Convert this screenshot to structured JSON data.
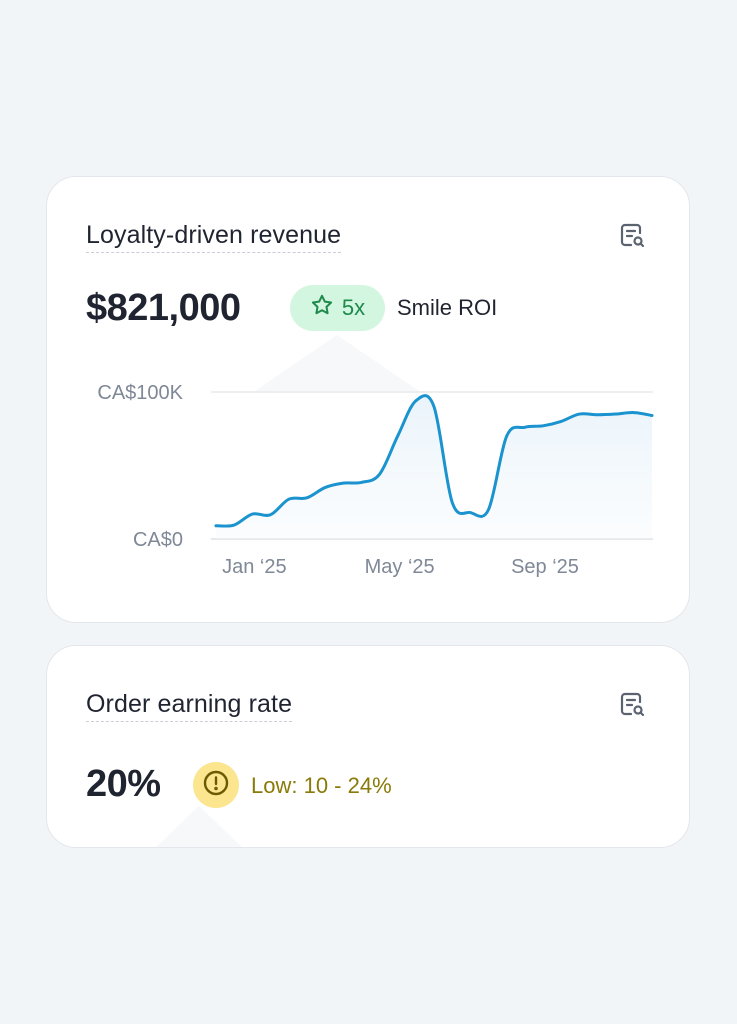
{
  "revenue_card": {
    "title": "Loyalty-driven revenue",
    "value": "$821,000",
    "roi_badge": "5x",
    "roi_label": "Smile ROI",
    "icon": "report-search-icon"
  },
  "rate_card": {
    "title": "Order earning rate",
    "value": "20%",
    "status_label": "Low: 10 - 24%",
    "icon": "report-search-icon",
    "status_icon": "alert-circle-icon"
  },
  "colors": {
    "line": "#1b93cf",
    "success_badge_bg": "#d3f6e0",
    "success_text": "#1f8a4c",
    "warning_badge_bg": "#fbe68f",
    "warning_text": "#8a7a08"
  },
  "chart_data": {
    "type": "area",
    "title": "",
    "xlabel": "",
    "ylabel": "",
    "y_tick_labels": [
      "CA$0",
      "CA$100K"
    ],
    "x_tick_labels": [
      "Jan ‘25",
      "May ‘25",
      "Sep ‘25"
    ],
    "ylim": [
      0,
      100000
    ],
    "grid": true,
    "series": [
      {
        "x": [
          0,
          0.5,
          1,
          1.5,
          2,
          2.5,
          3,
          3.5,
          4,
          4.5,
          5,
          5.5,
          6,
          6.5,
          7,
          7.5,
          8,
          8.5,
          9,
          9.5,
          10,
          10.5,
          11,
          11.5,
          12
        ],
        "values": [
          9000,
          9500,
          17000,
          16500,
          27000,
          28000,
          35000,
          38000,
          38500,
          44000,
          70000,
          94000,
          90000,
          25000,
          18000,
          20000,
          70000,
          76000,
          77000,
          80000,
          85000,
          84500,
          85000,
          86000,
          84000
        ]
      }
    ]
  }
}
